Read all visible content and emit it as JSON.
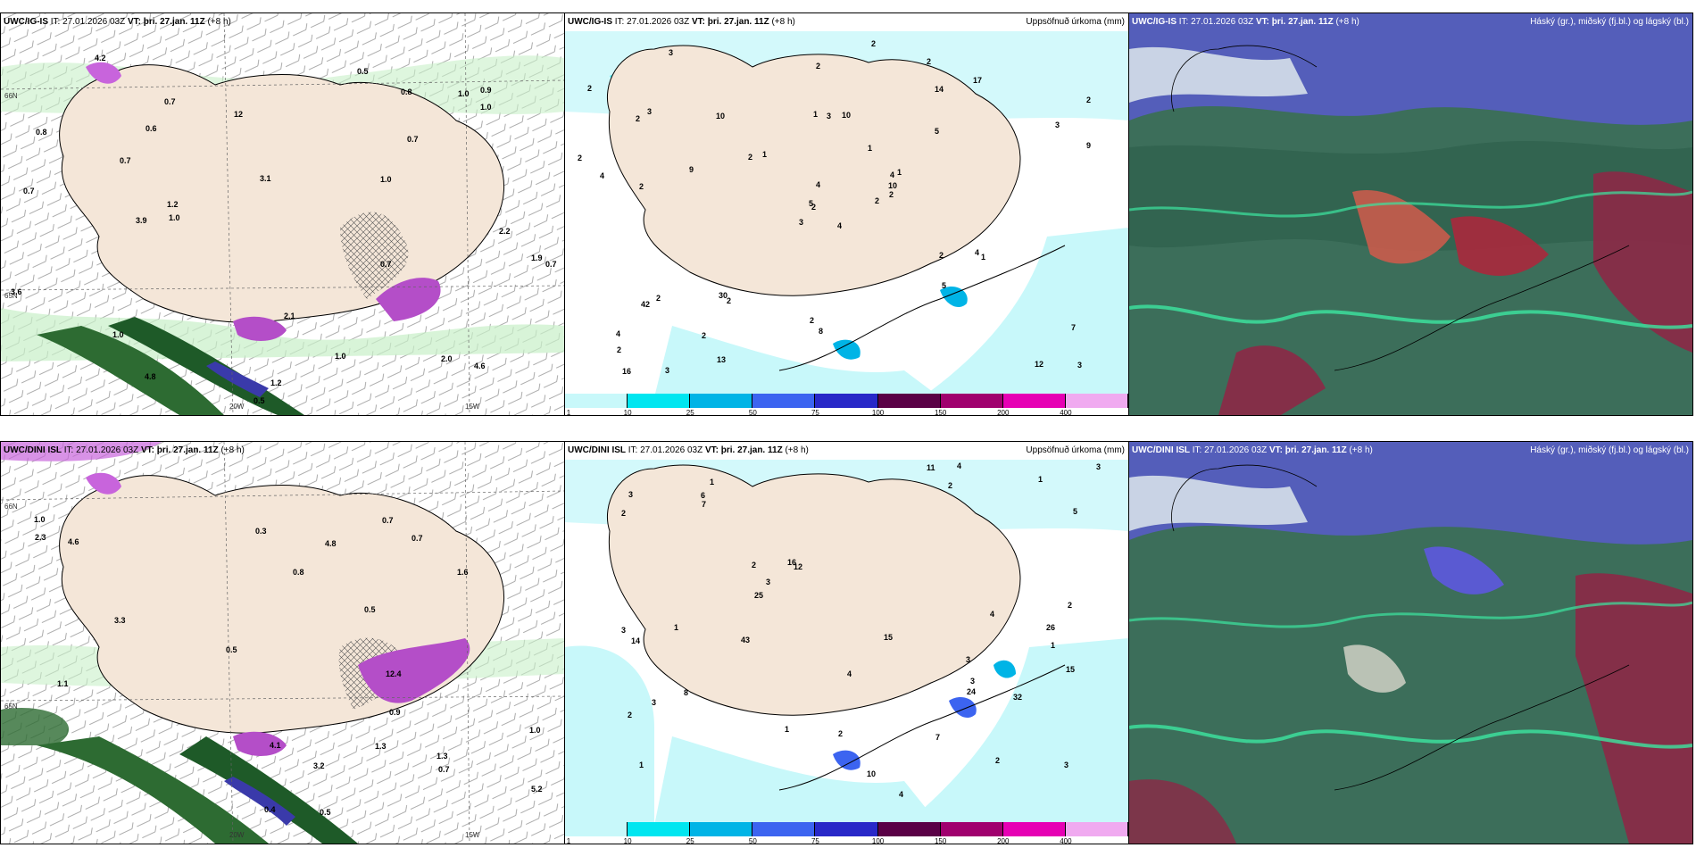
{
  "panels": {
    "tl": {
      "title_model": "UWC/IG-IS",
      "title_it": "IT: 27.01.2026 03Z",
      "title_vt_label": "VT:",
      "title_vt": "þri. 27.jan. 11Z",
      "title_lead": "(+8 h)"
    },
    "tm": {
      "title_model": "UWC/IG-IS",
      "title_it": "IT: 27.01.2026 03Z",
      "title_vt_label": "VT:",
      "title_vt": "þri. 27.jan. 11Z",
      "title_lead": "(+8 h)",
      "right_title": "Uppsöfnuð úrkoma (mm)"
    },
    "tr": {
      "title_model": "UWC/IG-IS",
      "title_it": "IT: 27.01.2026 03Z",
      "title_vt_label": "VT:",
      "title_vt": "þri. 27.jan. 11Z",
      "title_lead": "(+8 h)",
      "right_title": "Háský (gr.), miðský (fj.bl.) og lágský (bl.)"
    },
    "bl": {
      "title_model": "UWC/DINI ISL",
      "title_it": "IT: 27.01.2026 03Z",
      "title_vt_label": "VT:",
      "title_vt": "þri. 27.jan. 11Z",
      "title_lead": "(+8 h)"
    },
    "bm": {
      "title_model": "UWC/DINI ISL",
      "title_it": "IT: 27.01.2026 03Z",
      "title_vt_label": "VT:",
      "title_vt": "þri. 27.jan. 11Z",
      "title_lead": "(+8 h)",
      "right_title": "Uppsöfnuð úrkoma (mm)"
    },
    "br": {
      "title_model": "UWC/DINI ISL",
      "title_it": "IT: 27.01.2026 03Z",
      "title_vt_label": "VT:",
      "title_vt": "þri. 27.jan. 11Z",
      "title_lead": "(+8 h)",
      "right_title": "Háský (gr.), miðský (fj.bl.) og lágský (bl.)"
    }
  },
  "colorbar": {
    "ticks": [
      "1",
      "10",
      "25",
      "50",
      "75",
      "100",
      "150",
      "200",
      "400"
    ],
    "colors": [
      "#c8f8fa",
      "#00e6f0",
      "#00b4e6",
      "#3c64f0",
      "#2828c8",
      "#5a0046",
      "#a0006e",
      "#e600b4",
      "#f0aaf0"
    ]
  },
  "grid_labels": {
    "lat66": "66N",
    "lat65": "65N",
    "lon20": "20W",
    "lon15": "15W"
  },
  "precip_labels_top": [
    "4",
    "2",
    "2",
    "4",
    "4",
    "2",
    "2",
    "10",
    "14",
    "2",
    "3",
    "3",
    "2",
    "2",
    "3",
    "5",
    "3",
    "1",
    "1",
    "2",
    "1",
    "2",
    "2",
    "3",
    "1",
    "1",
    "3",
    "2",
    "4",
    "2",
    "9",
    "5",
    "2",
    "4",
    "10",
    "17",
    "30",
    "12",
    "7",
    "4",
    "2",
    "2",
    "9",
    "5",
    "13",
    "2",
    "10",
    "16",
    "8",
    "2",
    "42",
    "3",
    "2"
  ],
  "precip_labels_bottom": [
    "3",
    "1",
    "1",
    "1",
    "12",
    "2",
    "2",
    "2",
    "2",
    "4",
    "2",
    "3",
    "3",
    "3",
    "1",
    "2",
    "4",
    "15",
    "16",
    "8",
    "3",
    "1",
    "25",
    "15",
    "11",
    "6",
    "3",
    "14",
    "7",
    "4",
    "10",
    "7",
    "3",
    "43",
    "26",
    "32",
    "24",
    "1",
    "2",
    "3",
    "5",
    "4"
  ],
  "wind_labels_tl": [
    "0.8",
    "0.6",
    "1.0",
    "1.2",
    "1.0",
    "0.5",
    "0.7",
    "1.0",
    "0.9",
    "0.7",
    "1.9",
    "0.7",
    "0.7",
    "1.0",
    "0.7",
    "4.8",
    "1.2",
    "12",
    "4.6",
    "1.0",
    "2.0",
    "2.2",
    "3.1",
    "2.1",
    "0.8",
    "0.7",
    "1.0",
    "0.5",
    "4.2",
    "3.9",
    "3.6"
  ],
  "wind_labels_bl": [
    "0.8",
    "0.7",
    "1.0",
    "1.6",
    "0.4",
    "0.3",
    "0.5",
    "0.7",
    "3.3",
    "1.1",
    "1.3",
    "4.8",
    "12.4",
    "4.6",
    "5.2",
    "0.7",
    "1.0",
    "1.3",
    "3.2",
    "0.9",
    "2.3",
    "4.1",
    "0.5",
    "0.5"
  ]
}
